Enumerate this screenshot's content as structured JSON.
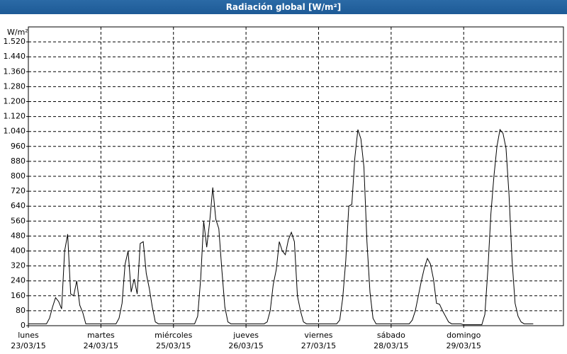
{
  "chart_data": {
    "type": "line",
    "title": "Radiación global [W/m²]",
    "y_label": "W/m²",
    "color": "#000000",
    "grid": true,
    "grid_style": "dashed",
    "xlim": [
      0,
      177
    ],
    "ylim": [
      0,
      1600
    ],
    "xticks": [
      {
        "value": 0,
        "label": "lunes\n23/03/15"
      },
      {
        "value": 24,
        "label": "martes\n24/03/15"
      },
      {
        "value": 48,
        "label": "miércoles\n25/03/15"
      },
      {
        "value": 72,
        "label": "jueves\n26/03/15"
      },
      {
        "value": 96,
        "label": "viernes\n27/03/15"
      },
      {
        "value": 120,
        "label": "sábado\n28/03/15"
      },
      {
        "value": 144,
        "label": "domingo\n29/03/15"
      }
    ],
    "yticks": [
      0,
      80,
      160,
      240,
      320,
      400,
      480,
      560,
      640,
      720,
      800,
      880,
      960,
      {
        "value": 1040,
        "label": "1.040"
      },
      {
        "value": 1120,
        "label": "1.120"
      },
      {
        "value": 1200,
        "label": "1.200"
      },
      {
        "value": 1280,
        "label": "1.280"
      },
      {
        "value": 1360,
        "label": "1.360"
      },
      {
        "value": 1440,
        "label": "1.440"
      },
      {
        "value": 1520,
        "label": "1.520"
      }
    ],
    "x": [
      0,
      1,
      2,
      3,
      4,
      5,
      6,
      7,
      8,
      9,
      10,
      11,
      12,
      13,
      14,
      15,
      16,
      17,
      18,
      19,
      20,
      21,
      22,
      23,
      24,
      25,
      26,
      27,
      28,
      29,
      30,
      31,
      32,
      33,
      34,
      35,
      36,
      37,
      38,
      39,
      40,
      41,
      42,
      43,
      44,
      45,
      46,
      47,
      48,
      49,
      50,
      51,
      52,
      53,
      54,
      55,
      56,
      57,
      58,
      59,
      60,
      61,
      62,
      63,
      64,
      65,
      66,
      67,
      68,
      69,
      70,
      71,
      72,
      73,
      74,
      75,
      76,
      77,
      78,
      79,
      80,
      81,
      82,
      83,
      84,
      85,
      86,
      87,
      88,
      89,
      90,
      91,
      92,
      93,
      94,
      95,
      96,
      97,
      98,
      99,
      100,
      101,
      102,
      103,
      104,
      105,
      106,
      107,
      108,
      109,
      110,
      111,
      112,
      113,
      114,
      115,
      116,
      117,
      118,
      119,
      120,
      121,
      122,
      123,
      124,
      125,
      126,
      127,
      128,
      129,
      130,
      131,
      132,
      133,
      134,
      135,
      136,
      137,
      138,
      139,
      140,
      141,
      142,
      143,
      144,
      145,
      146,
      147,
      148,
      149,
      150,
      151,
      152,
      153,
      154,
      155,
      156,
      157,
      158,
      159,
      160,
      161,
      162,
      163,
      164,
      165,
      166,
      167
    ],
    "values": [
      10,
      10,
      10,
      10,
      10,
      10,
      10,
      40,
      100,
      150,
      130,
      90,
      400,
      490,
      170,
      160,
      240,
      110,
      70,
      10,
      10,
      10,
      10,
      10,
      10,
      10,
      10,
      10,
      10,
      10,
      40,
      120,
      330,
      400,
      180,
      250,
      170,
      440,
      450,
      280,
      200,
      100,
      20,
      10,
      10,
      10,
      10,
      10,
      10,
      10,
      10,
      10,
      10,
      10,
      10,
      10,
      50,
      250,
      560,
      420,
      560,
      740,
      570,
      520,
      300,
      100,
      20,
      10,
      10,
      10,
      10,
      10,
      10,
      10,
      10,
      10,
      10,
      10,
      10,
      20,
      80,
      220,
      300,
      450,
      400,
      380,
      460,
      500,
      450,
      160,
      80,
      20,
      10,
      10,
      10,
      10,
      10,
      10,
      10,
      10,
      10,
      10,
      10,
      30,
      150,
      350,
      640,
      650,
      900,
      1050,
      1000,
      850,
      450,
      180,
      40,
      10,
      10,
      10,
      10,
      10,
      10,
      10,
      10,
      10,
      10,
      10,
      10,
      30,
      80,
      160,
      240,
      310,
      360,
      330,
      250,
      120,
      115,
      80,
      50,
      20,
      10,
      10,
      10,
      10,
      5,
      5,
      5,
      5,
      5,
      5,
      5,
      60,
      300,
      600,
      800,
      960,
      1050,
      1030,
      950,
      700,
      350,
      120,
      50,
      20,
      10,
      10,
      10,
      10
    ]
  }
}
